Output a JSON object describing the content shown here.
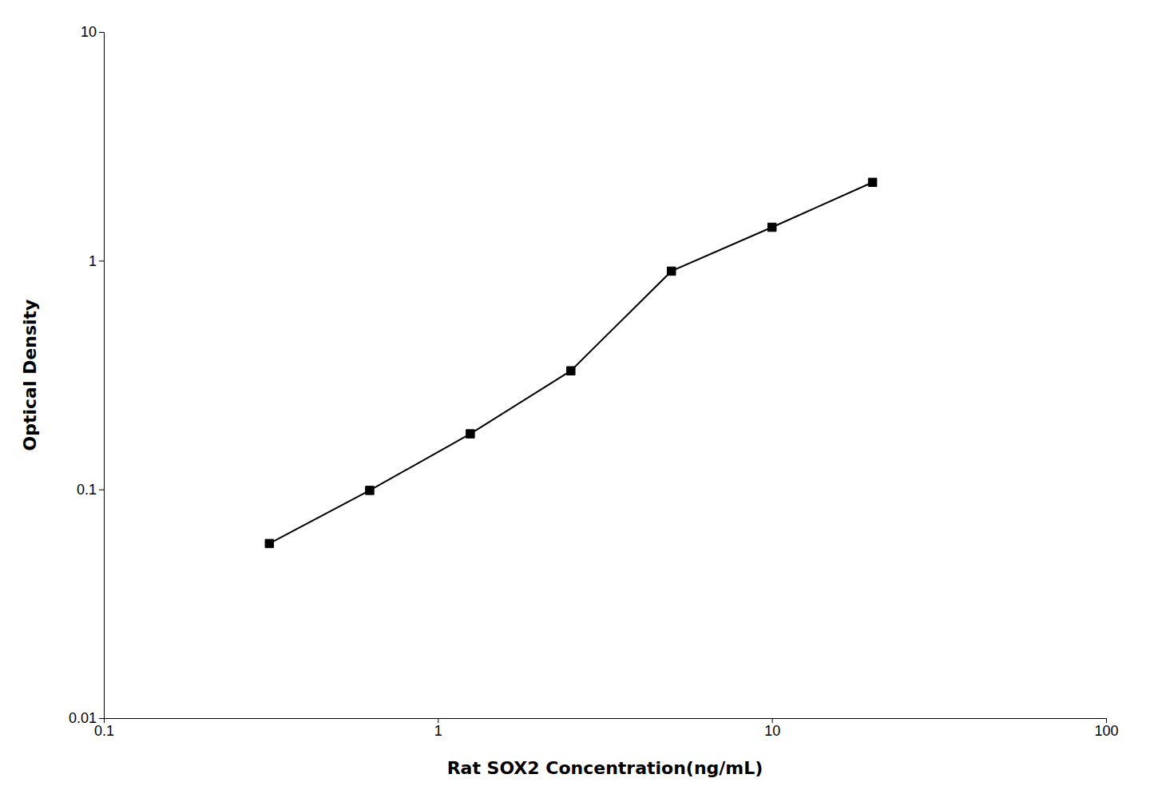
{
  "chart_data": {
    "type": "line",
    "x": [
      0.313,
      0.625,
      1.25,
      2.5,
      5.0,
      10.0,
      20.0
    ],
    "values": [
      0.058,
      0.099,
      0.175,
      0.33,
      0.9,
      1.4,
      2.2
    ],
    "xlabel": "Rat SOX2 Concentration(ng/mL)",
    "ylabel": "Optical Density",
    "xlim": [
      0.1,
      100
    ],
    "ylim": [
      0.01,
      10
    ],
    "xticks": [
      0.1,
      1,
      10,
      100
    ],
    "yticks": [
      0.01,
      0.1,
      1,
      10
    ],
    "log": true,
    "color": "#000000",
    "marker": "square"
  }
}
